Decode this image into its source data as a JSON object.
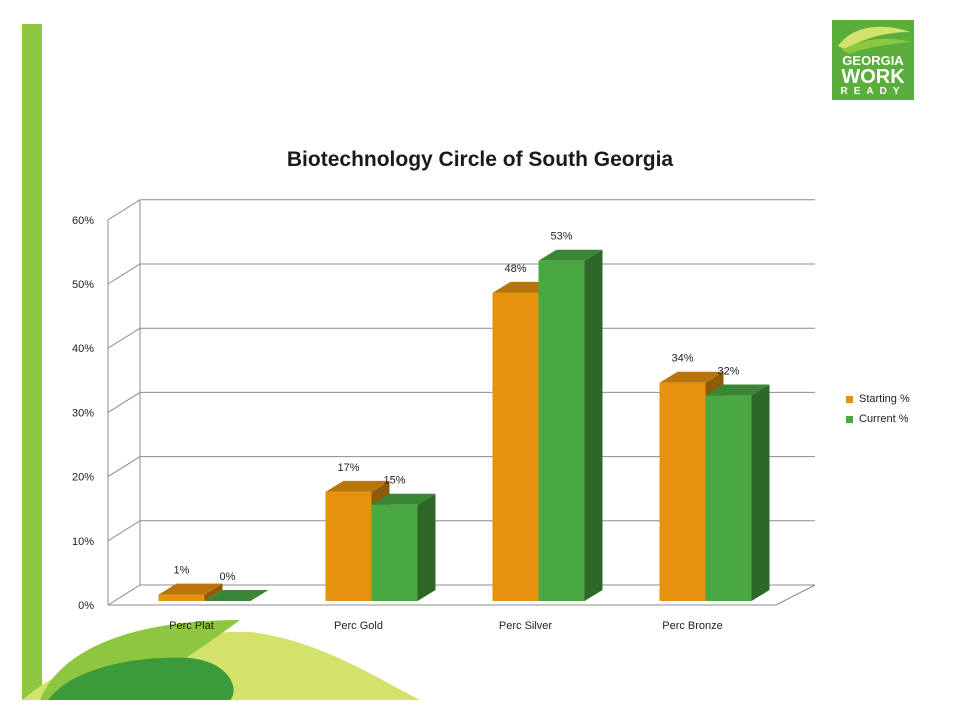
{
  "logo": {
    "line1": "GEORGIA",
    "line2": "WORK",
    "line3": "READY"
  },
  "colors": {
    "starting": "#e5920f",
    "current": "#4aa842",
    "accent": "#8dc63f"
  },
  "chart_data": {
    "type": "bar",
    "title": "Biotechnology Circle of South Georgia",
    "xlabel": "",
    "ylabel": "",
    "categories": [
      "Perc Plat",
      "Perc Gold",
      "Perc Silver",
      "Perc Bronze"
    ],
    "series": [
      {
        "name": "Starting %",
        "values": [
          1,
          17,
          48,
          34
        ],
        "labels": [
          "1%",
          "17%",
          "48%",
          "34%"
        ]
      },
      {
        "name": "Current %",
        "values": [
          0,
          15,
          53,
          32
        ],
        "labels": [
          "0%",
          "15%",
          "53%",
          "32%"
        ]
      }
    ],
    "ylim": [
      0,
      60
    ],
    "yticks": [
      "0%",
      "10%",
      "20%",
      "30%",
      "40%",
      "50%",
      "60%"
    ],
    "grid": true,
    "legend_position": "right",
    "style": "3d-column"
  }
}
